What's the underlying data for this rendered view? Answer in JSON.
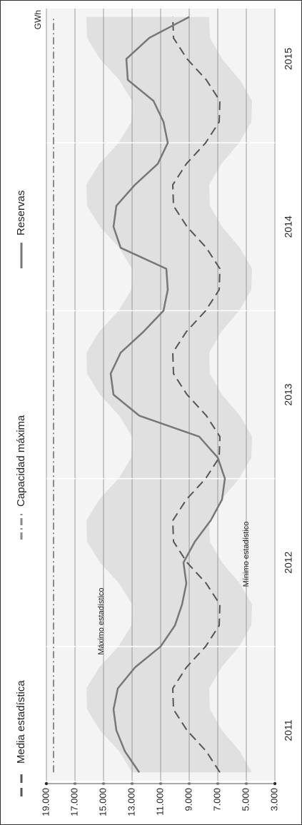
{
  "chart_data": {
    "type": "line",
    "unit": "GWh",
    "x": [
      2011.25,
      2011.375,
      2011.5,
      2011.625,
      2011.75,
      2011.875,
      2012,
      2012.125,
      2012.25,
      2012.375,
      2012.5,
      2012.625,
      2012.75,
      2012.875,
      2013,
      2013.125,
      2013.25,
      2013.375,
      2013.5,
      2013.625,
      2013.75,
      2013.875,
      2014,
      2014.125,
      2014.25,
      2014.375,
      2014.5,
      2014.625,
      2014.75,
      2014.875,
      2015,
      2015.125,
      2015.25,
      2015.375,
      2015.5,
      2015.625,
      2015.75
    ],
    "xlim": [
      2011.2,
      2015.8
    ],
    "xticks": [
      {
        "value": 2011.5,
        "label": "2011"
      },
      {
        "value": 2012.5,
        "label": "2012"
      },
      {
        "value": 2013.5,
        "label": "2013"
      },
      {
        "value": 2014.5,
        "label": "2014"
      },
      {
        "value": 2015.5,
        "label": "2015"
      }
    ],
    "year_lines": [
      2012,
      2013,
      2014,
      2015
    ],
    "ylim": [
      3000,
      19000
    ],
    "yticks": [
      {
        "value": 3000,
        "label": "3.000"
      },
      {
        "value": 5000,
        "label": "5.000"
      },
      {
        "value": 7000,
        "label": "7.000"
      },
      {
        "value": 9000,
        "label": "9.000"
      },
      {
        "value": 11000,
        "label": "11.000"
      },
      {
        "value": 13000,
        "label": "13.000"
      },
      {
        "value": 15000,
        "label": "15.000"
      },
      {
        "value": 17000,
        "label": "17.000"
      },
      {
        "value": 19000,
        "label": "19.000"
      }
    ],
    "grid": true,
    "band": {
      "upper_name": "Máximo estadístico",
      "lower_name": "Mínimo estadístico",
      "color": "#e0e0e0",
      "upper": [
        13000,
        13900,
        15250,
        16150,
        16200,
        15300,
        13950,
        13050,
        13000,
        13900,
        15250,
        16150,
        16200,
        15300,
        13950,
        13050,
        13000,
        13900,
        15250,
        16150,
        16200,
        15300,
        13950,
        13050,
        13000,
        13900,
        15250,
        16150,
        16200,
        15300,
        13950,
        13050,
        13000,
        13900,
        15250,
        16150,
        16200
      ],
      "lower": [
        4600,
        5450,
        6700,
        7550,
        7600,
        6750,
        5500,
        4650,
        4600,
        5450,
        6700,
        7550,
        7600,
        6750,
        5500,
        4650,
        4600,
        5450,
        6700,
        7550,
        7600,
        6750,
        5500,
        4650,
        4600,
        5450,
        6700,
        7550,
        7600,
        6750,
        5500,
        4650,
        4600,
        5450,
        6700,
        7550,
        7600
      ]
    },
    "series": [
      {
        "name": "Media estadística",
        "color": "#555555",
        "dash": "12 7",
        "width": 2,
        "values": [
          6850,
          7800,
          9150,
          10100,
          10150,
          9200,
          7850,
          6900,
          6850,
          7800,
          9150,
          10100,
          10150,
          9200,
          7850,
          6900,
          6850,
          7800,
          9150,
          10100,
          10150,
          9200,
          7850,
          6900,
          6850,
          7800,
          9150,
          10100,
          10150,
          9200,
          7850,
          6900,
          6850,
          7800,
          9150,
          10100,
          10150
        ]
      },
      {
        "name": "Capacidad máxima",
        "color": "#8a8a8a",
        "dash": "10 4 2 4",
        "width": 2,
        "values": [
          18500,
          18500,
          18500,
          18500,
          18500,
          18500,
          18500,
          18500,
          18500,
          18500,
          18500,
          18500,
          18500,
          18500,
          18500,
          18500,
          18500,
          18500,
          18500,
          18500,
          18500,
          18500,
          18500,
          18500,
          18500,
          18500,
          18500,
          18500,
          18500,
          18500,
          18500,
          18500,
          18500,
          18500,
          18500,
          18500,
          18500
        ]
      },
      {
        "name": "Reservas",
        "color": "#777777",
        "dash": "none",
        "width": 2.5,
        "values": [
          12500,
          13500,
          14100,
          14300,
          14000,
          12800,
          11000,
          10000,
          9500,
          9200,
          9400,
          8600,
          7500,
          6700,
          6500,
          7000,
          8300,
          12500,
          14300,
          14500,
          13800,
          12200,
          10800,
          10500,
          10600,
          13800,
          14300,
          14100,
          12800,
          11200,
          10500,
          10800,
          11500,
          13300,
          13400,
          11800,
          9000
        ]
      }
    ]
  }
}
